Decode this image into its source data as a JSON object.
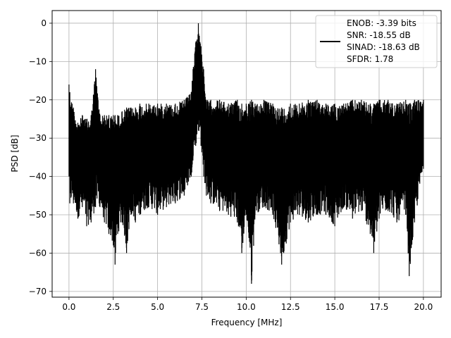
{
  "chart_data": {
    "type": "line",
    "title": "",
    "xlabel": "Frequency [MHz]",
    "ylabel": "PSD [dB]",
    "xlim": [
      -0.95,
      21.0
    ],
    "ylim": [
      -71.5,
      3.3
    ],
    "xticks": [
      0.0,
      2.5,
      5.0,
      7.5,
      10.0,
      12.5,
      15.0,
      17.5,
      20.0
    ],
    "xtick_labels": [
      "0.0",
      "2.5",
      "5.0",
      "7.5",
      "10.0",
      "12.5",
      "15.0",
      "17.5",
      "20.0"
    ],
    "yticks": [
      0,
      -10,
      -20,
      -30,
      -40,
      -50,
      -60,
      -70
    ],
    "ytick_labels": [
      "0",
      "−10",
      "−20",
      "−30",
      "−40",
      "−50",
      "−60",
      "−70"
    ],
    "grid": true,
    "legend_position": "top-right",
    "legend_entries": [
      "ENOB: -3.39 bits",
      "SNR: -18.55 dB",
      "SINAD: -18.63 dB",
      "SFDR: 1.78"
    ],
    "series": [
      {
        "color": "#000000",
        "envelope": [
          {
            "x": 0.0,
            "min": -40,
            "max": -16
          },
          {
            "x": 0.05,
            "min": -47,
            "max": -18
          },
          {
            "x": 0.25,
            "min": -47,
            "max": -22
          },
          {
            "x": 0.5,
            "min": -51,
            "max": -26
          },
          {
            "x": 0.75,
            "min": -48,
            "max": -24
          },
          {
            "x": 1.0,
            "min": -53,
            "max": -25
          },
          {
            "x": 1.25,
            "min": -52,
            "max": -24
          },
          {
            "x": 1.5,
            "min": -48,
            "max": -12
          },
          {
            "x": 1.75,
            "min": -48,
            "max": -24
          },
          {
            "x": 2.0,
            "min": -52,
            "max": -24
          },
          {
            "x": 2.25,
            "min": -55,
            "max": -24
          },
          {
            "x": 2.5,
            "min": -58,
            "max": -24
          },
          {
            "x": 2.6,
            "min": -63,
            "max": -24
          },
          {
            "x": 2.75,
            "min": -55,
            "max": -24
          },
          {
            "x": 3.0,
            "min": -52,
            "max": -23
          },
          {
            "x": 3.25,
            "min": -60,
            "max": -22
          },
          {
            "x": 3.5,
            "min": -50,
            "max": -22
          },
          {
            "x": 3.75,
            "min": -52,
            "max": -22
          },
          {
            "x": 4.0,
            "min": -50,
            "max": -21
          },
          {
            "x": 4.5,
            "min": -48,
            "max": -21
          },
          {
            "x": 5.0,
            "min": -50,
            "max": -21
          },
          {
            "x": 5.5,
            "min": -48,
            "max": -21
          },
          {
            "x": 6.0,
            "min": -47,
            "max": -21
          },
          {
            "x": 6.5,
            "min": -45,
            "max": -20
          },
          {
            "x": 6.9,
            "min": -40,
            "max": -18
          },
          {
            "x": 7.0,
            "min": -35,
            "max": -12
          },
          {
            "x": 7.15,
            "min": -32,
            "max": -5
          },
          {
            "x": 7.3,
            "min": -28,
            "max": 0
          },
          {
            "x": 7.45,
            "min": -32,
            "max": -6
          },
          {
            "x": 7.6,
            "min": -40,
            "max": -12
          },
          {
            "x": 7.75,
            "min": -45,
            "max": -20
          },
          {
            "x": 8.0,
            "min": -47,
            "max": -20
          },
          {
            "x": 8.5,
            "min": -49,
            "max": -20
          },
          {
            "x": 9.0,
            "min": -50,
            "max": -21
          },
          {
            "x": 9.5,
            "min": -52,
            "max": -20
          },
          {
            "x": 9.75,
            "min": -60,
            "max": -21
          },
          {
            "x": 10.0,
            "min": -50,
            "max": -21
          },
          {
            "x": 10.3,
            "min": -68,
            "max": -20
          },
          {
            "x": 10.5,
            "min": -50,
            "max": -21
          },
          {
            "x": 11.0,
            "min": -48,
            "max": -20
          },
          {
            "x": 11.5,
            "min": -50,
            "max": -21
          },
          {
            "x": 12.0,
            "min": -63,
            "max": -22
          },
          {
            "x": 12.5,
            "min": -52,
            "max": -21
          },
          {
            "x": 13.0,
            "min": -50,
            "max": -21
          },
          {
            "x": 13.5,
            "min": -52,
            "max": -20
          },
          {
            "x": 14.0,
            "min": -50,
            "max": -20
          },
          {
            "x": 14.5,
            "min": -50,
            "max": -21
          },
          {
            "x": 15.0,
            "min": -53,
            "max": -21
          },
          {
            "x": 15.5,
            "min": -48,
            "max": -21
          },
          {
            "x": 16.0,
            "min": -51,
            "max": -20
          },
          {
            "x": 16.5,
            "min": -49,
            "max": -20
          },
          {
            "x": 17.0,
            "min": -55,
            "max": -21
          },
          {
            "x": 17.2,
            "min": -60,
            "max": -21
          },
          {
            "x": 17.5,
            "min": -51,
            "max": -20
          },
          {
            "x": 18.0,
            "min": -49,
            "max": -20
          },
          {
            "x": 18.5,
            "min": -52,
            "max": -21
          },
          {
            "x": 19.0,
            "min": -50,
            "max": -20
          },
          {
            "x": 19.2,
            "min": -66,
            "max": -21
          },
          {
            "x": 19.5,
            "min": -52,
            "max": -20
          },
          {
            "x": 20.0,
            "min": -38,
            "max": -20
          }
        ]
      }
    ]
  }
}
